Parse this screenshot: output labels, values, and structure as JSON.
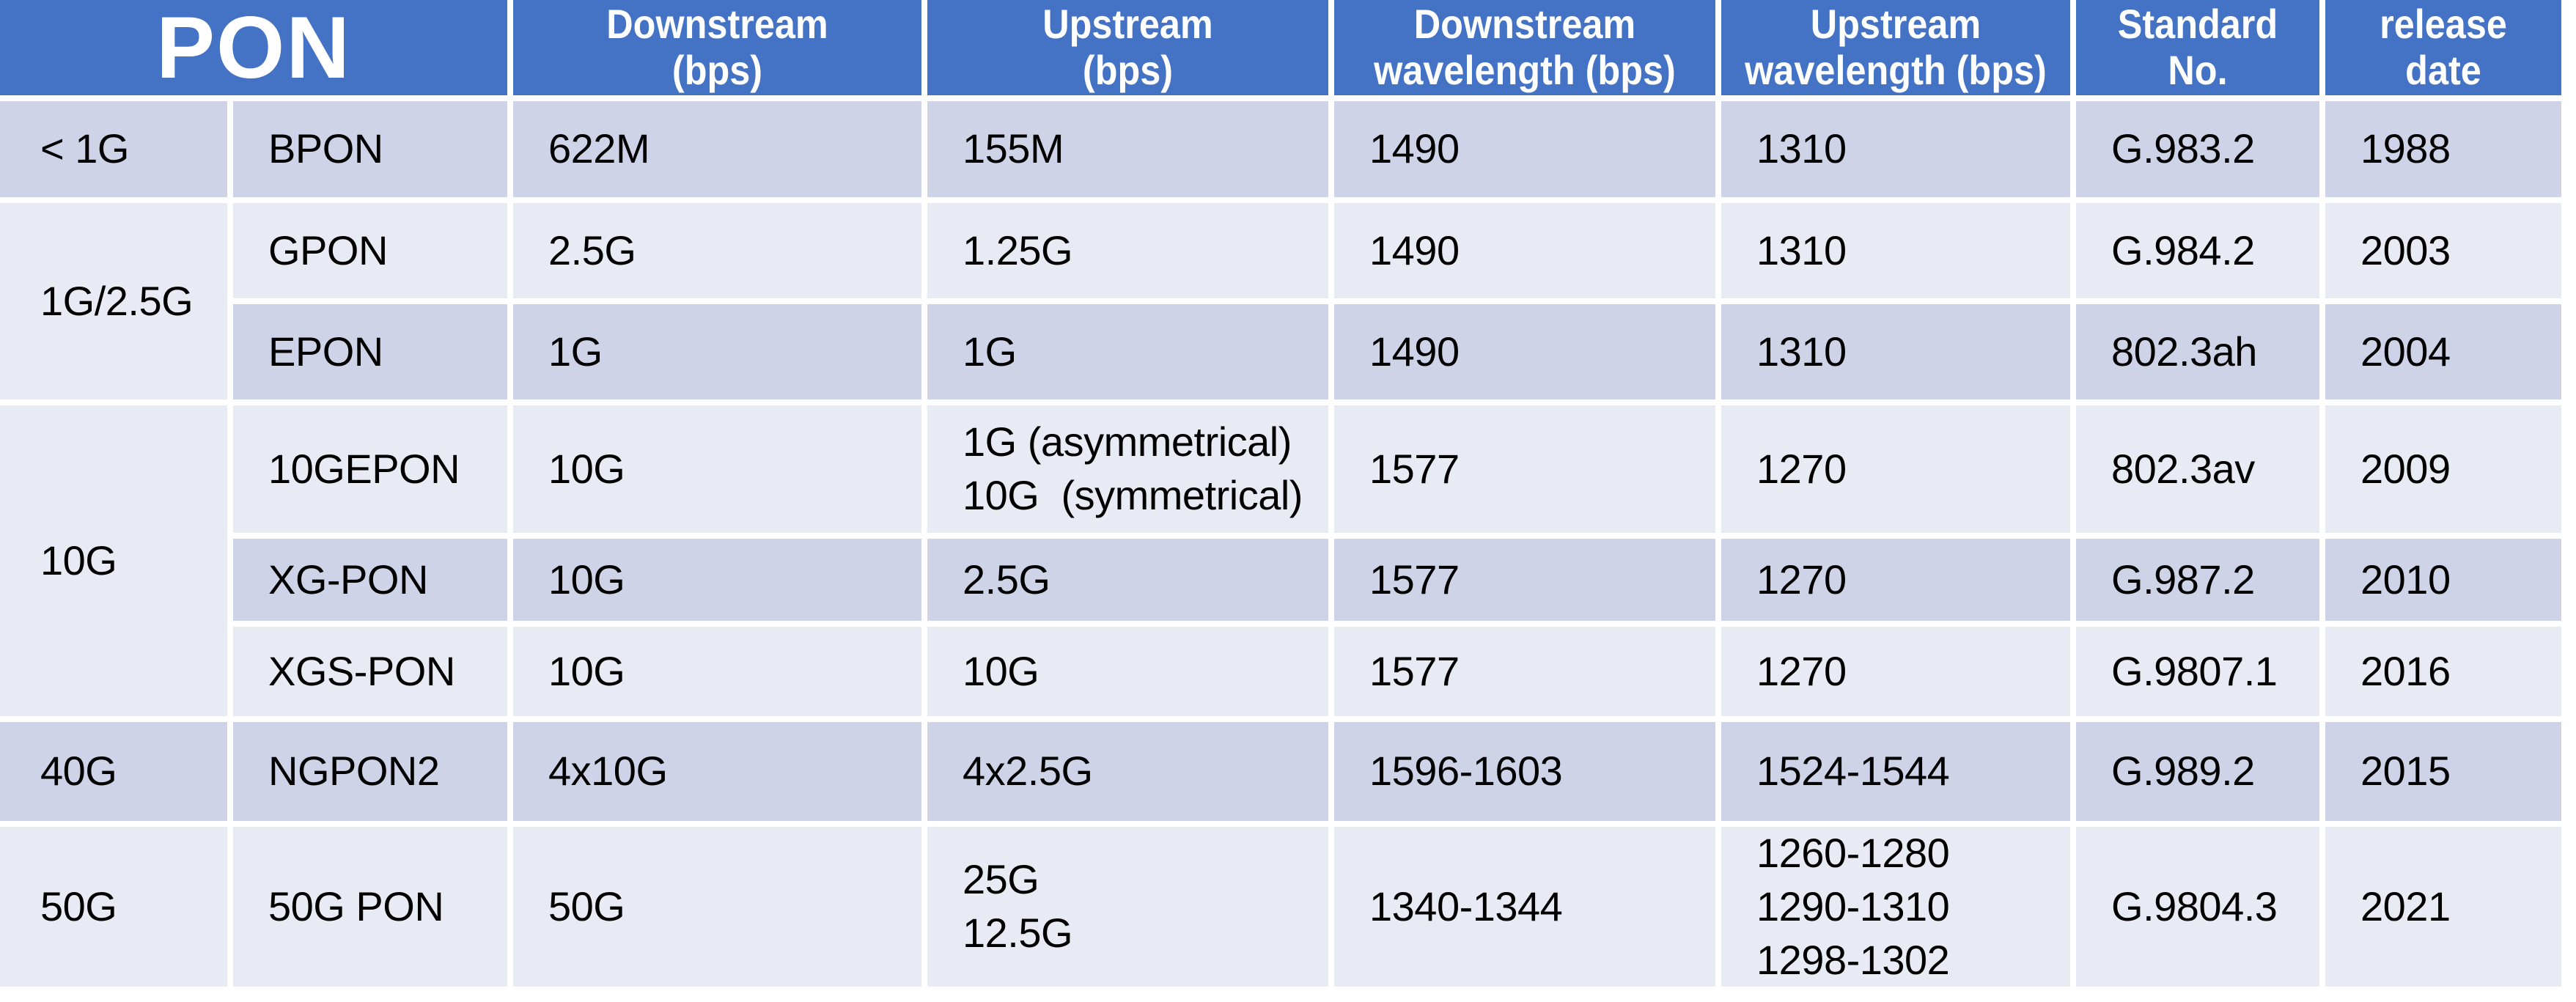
{
  "colors": {
    "header_bg": "#4472C4",
    "band_dark": "#CFD3E8",
    "band_light": "#E8EAF4",
    "grid": "#FFFFFF",
    "text": "#000000",
    "header_text": "#FFFFFF"
  },
  "header": {
    "pon": "PON",
    "columns": [
      "Downstream\n(bps)",
      "Upstream\n(bps)",
      "Downstream\nwavelength (bps)",
      "Upstream\nwavelength (bps)",
      "Standard\nNo.",
      "release\ndate"
    ]
  },
  "groups": [
    {
      "label": "< 1G"
    },
    {
      "label": "1G/2.5G"
    },
    {
      "label": "10G"
    },
    {
      "label": "40G"
    },
    {
      "label": "50G"
    }
  ],
  "rows": [
    {
      "name": "BPON",
      "downstream": "622M",
      "upstream": "155M",
      "ds_wavelength": "1490",
      "us_wavelength": "1310",
      "standard": "G.983.2",
      "release": "1988"
    },
    {
      "name": "GPON",
      "downstream": "2.5G",
      "upstream": "1.25G",
      "ds_wavelength": "1490",
      "us_wavelength": "1310",
      "standard": "G.984.2",
      "release": "2003"
    },
    {
      "name": "EPON",
      "downstream": "1G",
      "upstream": "1G",
      "ds_wavelength": "1490",
      "us_wavelength": "1310",
      "standard": "802.3ah",
      "release": "2004"
    },
    {
      "name": "10GEPON",
      "downstream": "10G",
      "upstream": "1G (asymmetrical)\n10G  (symmetrical)",
      "ds_wavelength": "1577",
      "us_wavelength": "1270",
      "standard": "802.3av",
      "release": "2009"
    },
    {
      "name": "XG-PON",
      "downstream": "10G",
      "upstream": "2.5G",
      "ds_wavelength": "1577",
      "us_wavelength": "1270",
      "standard": "G.987.2",
      "release": "2010"
    },
    {
      "name": "XGS-PON",
      "downstream": "10G",
      "upstream": "10G",
      "ds_wavelength": "1577",
      "us_wavelength": "1270",
      "standard": "G.9807.1",
      "release": "2016"
    },
    {
      "name": "NGPON2",
      "downstream": "4x10G",
      "upstream": "4x2.5G",
      "ds_wavelength": "1596-1603",
      "us_wavelength": "1524-1544",
      "standard": "G.989.2",
      "release": "2015"
    },
    {
      "name": "50G PON",
      "downstream": "50G",
      "upstream": "25G\n12.5G",
      "ds_wavelength": "1340-1344",
      "us_wavelength": "1260-1280\n1290-1310\n1298-1302",
      "standard": "G.9804.3",
      "release": "2021"
    }
  ]
}
